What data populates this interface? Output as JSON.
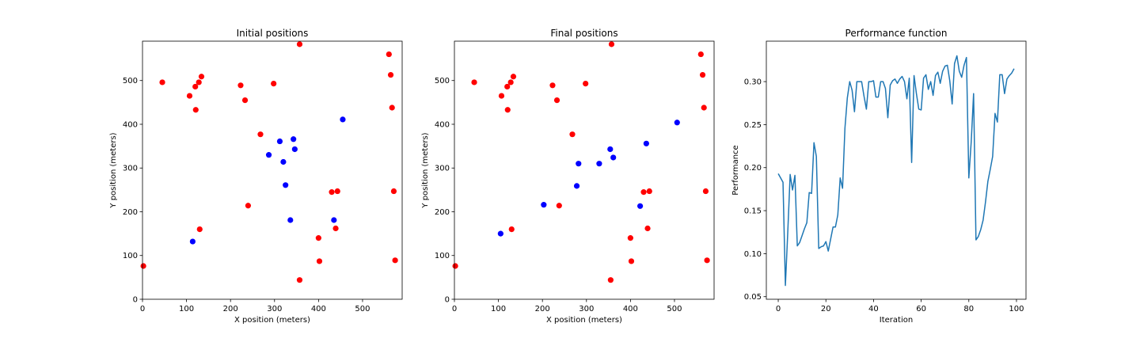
{
  "chart_data": [
    {
      "type": "scatter",
      "title": "Initial positions",
      "xlabel": "X position (meters)",
      "ylabel": "Y position (meters)",
      "xlim": [
        0,
        590
      ],
      "ylim": [
        0,
        590
      ],
      "xticks": [
        0,
        100,
        200,
        300,
        400,
        500
      ],
      "yticks": [
        0,
        100,
        200,
        300,
        400,
        500
      ],
      "series": [
        {
          "color": "#ff0000",
          "points": [
            [
              2,
              76
            ],
            [
              45,
              496
            ],
            [
              107,
              465
            ],
            [
              120,
              486
            ],
            [
              128,
              496
            ],
            [
              134,
              509
            ],
            [
              121,
              433
            ],
            [
              130,
              160
            ],
            [
              223,
              489
            ],
            [
              233,
              455
            ],
            [
              240,
              214
            ],
            [
              268,
              377
            ],
            [
              298,
              493
            ],
            [
              357,
              583
            ],
            [
              357,
              44
            ],
            [
              400,
              140
            ],
            [
              402,
              87
            ],
            [
              430,
              245
            ],
            [
              443,
              247
            ],
            [
              439,
              162
            ],
            [
              560,
              560
            ],
            [
              564,
              513
            ],
            [
              567,
              438
            ],
            [
              571,
              247
            ],
            [
              574,
              89
            ]
          ]
        },
        {
          "color": "#0000ff",
          "points": [
            [
              114,
              132
            ],
            [
              287,
              330
            ],
            [
              312,
              361
            ],
            [
              320,
              314
            ],
            [
              325,
              261
            ],
            [
              336,
              181
            ],
            [
              343,
              366
            ],
            [
              346,
              343
            ],
            [
              455,
              411
            ],
            [
              435,
              181
            ]
          ]
        }
      ]
    },
    {
      "type": "scatter",
      "title": "Final positions",
      "xlabel": "X position (meters)",
      "ylabel": "Y position (meters)",
      "xlim": [
        0,
        590
      ],
      "ylim": [
        0,
        590
      ],
      "xticks": [
        0,
        100,
        200,
        300,
        400,
        500
      ],
      "yticks": [
        0,
        100,
        200,
        300,
        400,
        500
      ],
      "series": [
        {
          "color": "#ff0000",
          "points": [
            [
              2,
              76
            ],
            [
              45,
              496
            ],
            [
              107,
              465
            ],
            [
              120,
              486
            ],
            [
              128,
              496
            ],
            [
              134,
              509
            ],
            [
              121,
              433
            ],
            [
              130,
              160
            ],
            [
              223,
              489
            ],
            [
              233,
              455
            ],
            [
              238,
              214
            ],
            [
              268,
              377
            ],
            [
              298,
              493
            ],
            [
              357,
              583
            ],
            [
              355,
              44
            ],
            [
              400,
              140
            ],
            [
              402,
              87
            ],
            [
              430,
              245
            ],
            [
              443,
              247
            ],
            [
              439,
              162
            ],
            [
              560,
              560
            ],
            [
              564,
              513
            ],
            [
              567,
              438
            ],
            [
              571,
              247
            ],
            [
              574,
              89
            ]
          ]
        },
        {
          "color": "#0000ff",
          "points": [
            [
              105,
              150
            ],
            [
              203,
              216
            ],
            [
              278,
              259
            ],
            [
              282,
              310
            ],
            [
              329,
              310
            ],
            [
              354,
              343
            ],
            [
              361,
              324
            ],
            [
              422,
              213
            ],
            [
              436,
              356
            ],
            [
              506,
              404
            ]
          ]
        }
      ]
    },
    {
      "type": "line",
      "title": "Performance function",
      "xlabel": "Iteration",
      "ylabel": "Performance",
      "xlim": [
        -5,
        104
      ],
      "ylim": [
        0.047,
        0.347
      ],
      "xticks": [
        0,
        20,
        40,
        60,
        80,
        100
      ],
      "yticks": [
        "0.05",
        "0.10",
        "0.15",
        "0.20",
        "0.25",
        "0.30"
      ],
      "series": [
        {
          "color": "#1f77b4",
          "y": [
            0.193,
            0.188,
            0.183,
            0.063,
            0.125,
            0.192,
            0.174,
            0.191,
            0.109,
            0.113,
            0.121,
            0.129,
            0.136,
            0.171,
            0.17,
            0.229,
            0.213,
            0.106,
            0.108,
            0.109,
            0.114,
            0.103,
            0.117,
            0.131,
            0.131,
            0.145,
            0.188,
            0.176,
            0.246,
            0.281,
            0.3,
            0.29,
            0.265,
            0.3,
            0.3,
            0.3,
            0.283,
            0.268,
            0.3,
            0.3,
            0.301,
            0.282,
            0.282,
            0.3,
            0.3,
            0.292,
            0.258,
            0.296,
            0.301,
            0.303,
            0.298,
            0.303,
            0.306,
            0.3,
            0.28,
            0.304,
            0.206,
            0.307,
            0.286,
            0.268,
            0.267,
            0.304,
            0.308,
            0.291,
            0.3,
            0.284,
            0.307,
            0.311,
            0.298,
            0.312,
            0.318,
            0.319,
            0.301,
            0.274,
            0.321,
            0.33,
            0.312,
            0.305,
            0.319,
            0.328,
            0.188,
            0.23,
            0.286,
            0.116,
            0.12,
            0.128,
            0.139,
            0.16,
            0.184,
            0.198,
            0.213,
            0.263,
            0.253,
            0.308,
            0.308,
            0.286,
            0.303,
            0.307,
            0.31,
            0.315
          ]
        }
      ]
    }
  ]
}
